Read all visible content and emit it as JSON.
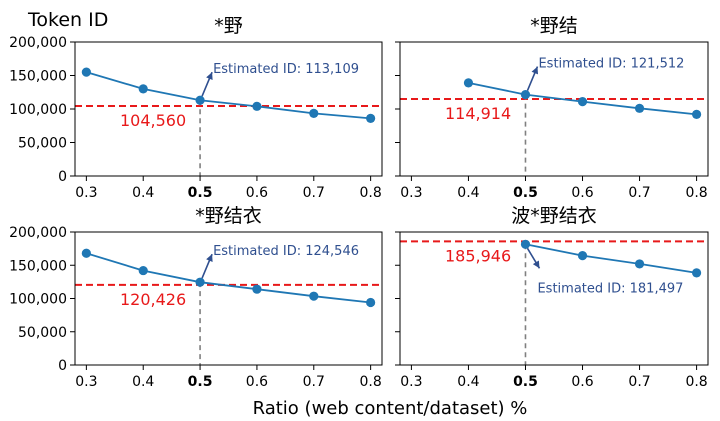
{
  "figure": {
    "ylabel_top": "Token ID",
    "xlabel": "Ratio (web content/dataset) %"
  },
  "colors": {
    "series": "#1f77b4",
    "reference": "#e8191a",
    "annotation": "#2f4f8f",
    "marker_line": "#808080"
  },
  "chart_data": [
    {
      "type": "line",
      "title": "*野",
      "x": [
        0.3,
        0.4,
        0.5,
        0.6,
        0.7,
        0.8
      ],
      "y": [
        155000,
        130000,
        113109,
        104000,
        93500,
        86000
      ],
      "xticks": [
        "0.3",
        "0.4",
        "0.5",
        "0.6",
        "0.7",
        "0.8"
      ],
      "xtick_bold": "0.5",
      "yticks": [
        "0",
        "50,000",
        "100,000",
        "150,000",
        "200,000"
      ],
      "ylim": [
        0,
        200000
      ],
      "xlim": [
        0.28,
        0.82
      ],
      "reference_value": 104560,
      "reference_label": "104,560",
      "estimate_x": 0.5,
      "estimate_value": 113109,
      "estimate_label": "Estimated ID: 113,109",
      "annotation_side": "above"
    },
    {
      "type": "line",
      "title": "*野结",
      "x": [
        0.4,
        0.5,
        0.6,
        0.7,
        0.8
      ],
      "y": [
        139000,
        121512,
        111000,
        101000,
        92000
      ],
      "xticks": [
        "0.3",
        "0.4",
        "0.5",
        "0.6",
        "0.7",
        "0.8"
      ],
      "xtick_bold": "0.5",
      "yticks": [],
      "ylim": [
        0,
        200000
      ],
      "xlim": [
        0.28,
        0.82
      ],
      "reference_value": 114914,
      "reference_label": "114,914",
      "estimate_x": 0.5,
      "estimate_value": 121512,
      "estimate_label": "Estimated ID: 121,512",
      "annotation_side": "above"
    },
    {
      "type": "line",
      "title": "*野结衣",
      "x": [
        0.3,
        0.4,
        0.5,
        0.6,
        0.7,
        0.8
      ],
      "y": [
        168000,
        142000,
        124546,
        114000,
        103500,
        94000
      ],
      "xticks": [
        "0.3",
        "0.4",
        "0.5",
        "0.6",
        "0.7",
        "0.8"
      ],
      "xtick_bold": "0.5",
      "yticks": [
        "0",
        "50,000",
        "100,000",
        "150,000",
        "200,000"
      ],
      "ylim": [
        0,
        200000
      ],
      "xlim": [
        0.28,
        0.82
      ],
      "reference_value": 120426,
      "reference_label": "120,426",
      "estimate_x": 0.5,
      "estimate_value": 124546,
      "estimate_label": "Estimated ID: 124,546",
      "annotation_side": "above"
    },
    {
      "type": "line",
      "title": "波*野结衣",
      "x": [
        0.5,
        0.6,
        0.7,
        0.8
      ],
      "y": [
        181497,
        164500,
        152000,
        138500
      ],
      "xticks": [
        "0.3",
        "0.4",
        "0.5",
        "0.6",
        "0.7",
        "0.8"
      ],
      "xtick_bold": "0.5",
      "yticks": [],
      "ylim": [
        0,
        200000
      ],
      "xlim": [
        0.28,
        0.82
      ],
      "reference_value": 185946,
      "reference_label": "185,946",
      "estimate_x": 0.5,
      "estimate_value": 181497,
      "estimate_label": "Estimated ID: 181,497",
      "annotation_side": "below"
    }
  ]
}
